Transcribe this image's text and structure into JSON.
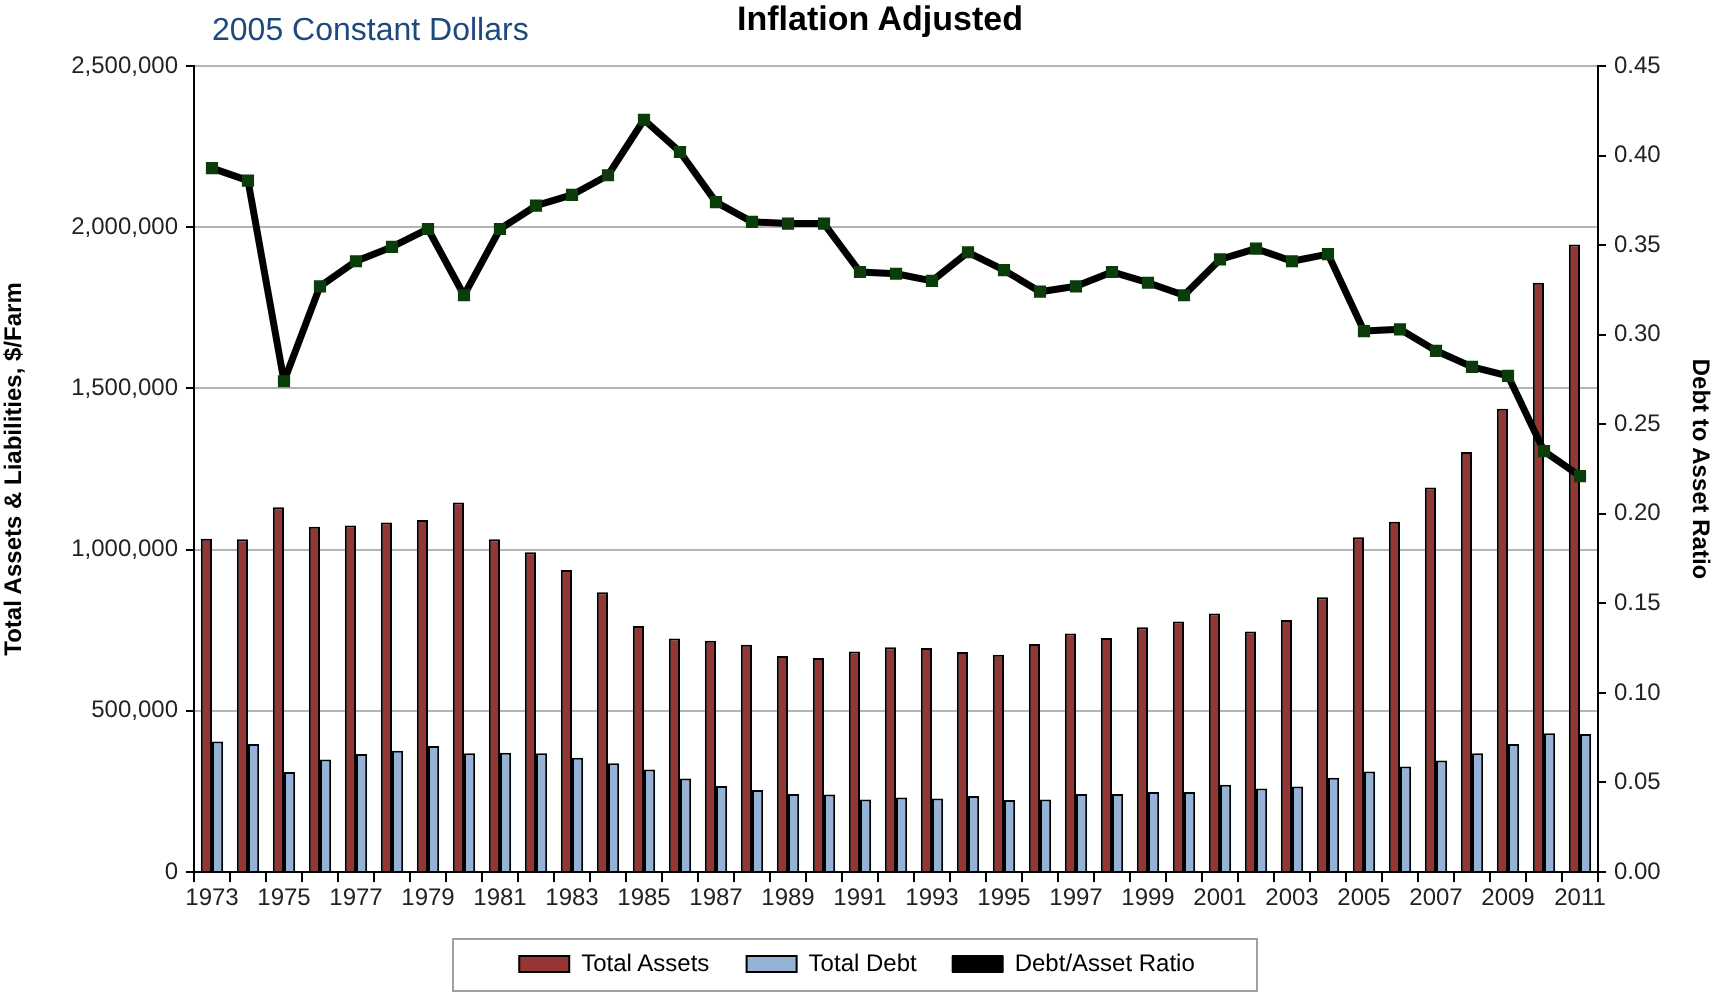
{
  "chart_data": {
    "type": "bar",
    "title": "Inflation Adjusted",
    "subtitle": "2005 Constant Dollars",
    "ylabel": "Total Assets & Liabilities, $/Farm",
    "y2label": "Debt to Asset Ratio",
    "categories": [
      "1973",
      null,
      "1975",
      null,
      "1977",
      null,
      "1979",
      null,
      "1981",
      null,
      "1983",
      null,
      "1985",
      null,
      "1987",
      null,
      "1989",
      null,
      "1991",
      null,
      "1993",
      null,
      "1995",
      null,
      "1997",
      null,
      "1999",
      null,
      "2001",
      null,
      "2003",
      null,
      "2005",
      null,
      "2007",
      null,
      "2009",
      null,
      "2011"
    ],
    "series": [
      {
        "name": "Total Assets",
        "color": "#943634",
        "values": [
          1034000,
          1032000,
          1131000,
          1071000,
          1075000,
          1084000,
          1092000,
          1146000,
          1032000,
          992000,
          937000,
          868000,
          763000,
          724000,
          717000,
          705000,
          670000,
          664000,
          684000,
          697000,
          695000,
          682000,
          674000,
          707000,
          740000,
          726000,
          759000,
          777000,
          802000,
          746000,
          782000,
          852000,
          1038000,
          1086000,
          1193000,
          1303000,
          1437000,
          1828000,
          1946000
        ]
      },
      {
        "name": "Total Debt",
        "color": "#95b3d7",
        "values": [
          405000,
          397000,
          310000,
          349000,
          366000,
          376000,
          391000,
          368000,
          370000,
          368000,
          354000,
          337000,
          318000,
          290000,
          267000,
          254000,
          242000,
          240000,
          225000,
          231000,
          228000,
          236000,
          223000,
          225000,
          242000,
          242000,
          248000,
          248000,
          271000,
          259000,
          265000,
          292000,
          312000,
          327000,
          346000,
          368000,
          397000,
          430000,
          428000
        ]
      },
      {
        "name": "Debt/Asset Ratio",
        "type": "line",
        "axis": "y2",
        "color": "#000000",
        "values": [
          0.393,
          0.386,
          0.274,
          0.327,
          0.341,
          0.349,
          0.359,
          0.322,
          0.359,
          0.372,
          0.378,
          0.389,
          0.42,
          0.402,
          0.374,
          0.363,
          0.362,
          0.362,
          0.335,
          0.334,
          0.33,
          0.346,
          0.336,
          0.324,
          0.327,
          0.335,
          0.329,
          0.322,
          0.342,
          0.348,
          0.341,
          0.345,
          0.302,
          0.303,
          0.291,
          0.282,
          0.277,
          0.235,
          0.221
        ]
      }
    ],
    "ylim": [
      0,
      2500000
    ],
    "yticks": [
      0,
      {
        "value": 500000,
        "label": "500,000"
      },
      {
        "value": 1000000,
        "label": "1,000,000"
      },
      {
        "value": 1500000,
        "label": "1,500,000"
      },
      {
        "value": 2000000,
        "label": "2,000,000"
      },
      {
        "value": 2500000,
        "label": "2,500,000"
      }
    ],
    "y2lim": [
      0,
      0.45
    ],
    "y2ticks": [
      {
        "value": 0,
        "label": "0.00"
      },
      {
        "value": 0.05,
        "label": "0.05"
      },
      {
        "value": 0.1,
        "label": "0.10"
      },
      {
        "value": 0.15,
        "label": "0.15"
      },
      {
        "value": 0.2,
        "label": "0.20"
      },
      {
        "value": 0.25,
        "label": "0.25"
      },
      {
        "value": 0.3,
        "label": "0.30"
      },
      {
        "value": 0.35,
        "label": "0.35"
      },
      {
        "value": 0.4,
        "label": "0.40"
      },
      {
        "value": 0.45,
        "label": "0.45"
      }
    ],
    "grid": "y",
    "legend": "bottom",
    "marker": "square",
    "line_style": "solid"
  }
}
